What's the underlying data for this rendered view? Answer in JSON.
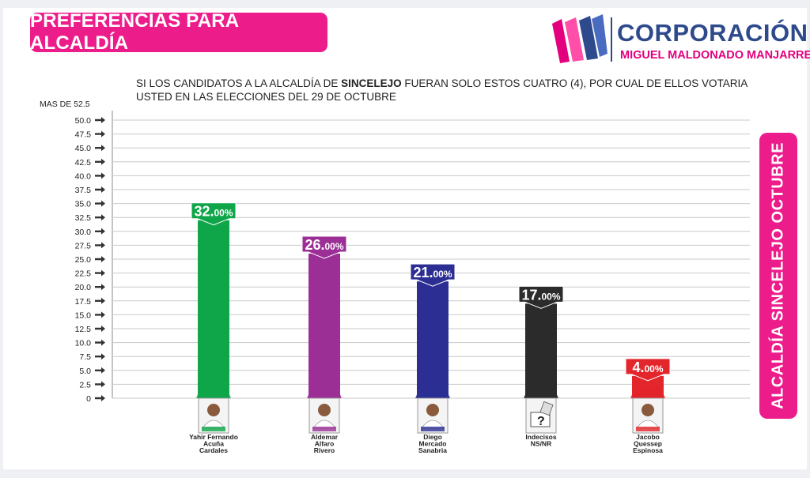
{
  "header": {
    "title": "PREFERENCIAS PARA ALCALDÍA",
    "logo_name": "CORPORACIÓN",
    "logo_subtitle": "MIGUEL MALDONADO MANJARREZ"
  },
  "question": {
    "part1": "SI LOS CANDIDATOS A LA ALCALDÍA DE ",
    "city": "SINCELEJO",
    "part2": " FUERAN SOLO ESTOS CUATRO (4), POR CUAL DE ELLOS VOTARIA USTED EN LAS ELECCIONES DEL 29 DE OCTUBRE"
  },
  "side_banner": "ALCALDÍA  SINCELEJO OCTUBRE",
  "chart_data": {
    "type": "bar",
    "axis_top_label": "MAS DE 52.5",
    "ylim": [
      0,
      52.5
    ],
    "yticks": [
      "50.0",
      "47.5",
      "45.0",
      "42.5",
      "40.0",
      "37.5",
      "35.0",
      "32.5",
      "30.0",
      "27.5",
      "25.0",
      "22.5",
      "20.0",
      "17.5",
      "15.0",
      "12.5",
      "10.0",
      "7.5",
      "5.0",
      "2.5",
      "0"
    ],
    "grid": true,
    "categories": [
      [
        "Yahir Fernando",
        "Acuña",
        "Cardales"
      ],
      [
        "Aldemar",
        "Alfaro",
        "Rivero"
      ],
      [
        "Diego",
        "Mercado",
        "Sanabria"
      ],
      [
        "Indecisos",
        "NS/NR"
      ],
      [
        "Jacobo",
        "Quessep",
        "Espinosa"
      ]
    ],
    "values": [
      32,
      26,
      21,
      17,
      4
    ],
    "value_labels": [
      {
        "int": "32.",
        "dec": "00%"
      },
      {
        "int": "26.",
        "dec": "00%"
      },
      {
        "int": "21.",
        "dec": "00%"
      },
      {
        "int": "17.",
        "dec": "00%"
      },
      {
        "int": "4.",
        "dec": "00%"
      }
    ],
    "colors": [
      "#0fa64a",
      "#9b2f96",
      "#2c2e93",
      "#2b2b2b",
      "#e3262b"
    ],
    "icons": [
      "candidate-photo-icon",
      "candidate-photo-icon",
      "candidate-photo-icon",
      "question-mark-ballot-icon",
      "candidate-photo-icon"
    ]
  }
}
